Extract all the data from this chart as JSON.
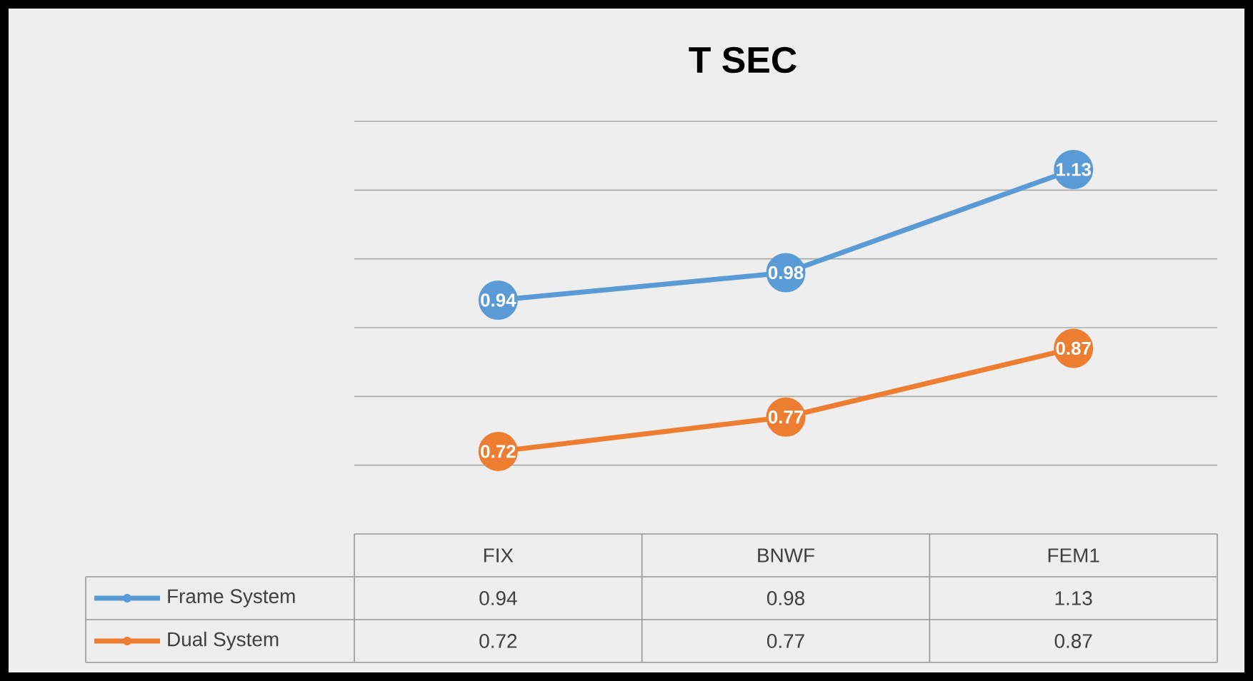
{
  "chart_data": {
    "type": "line",
    "title": "T SEC",
    "categories": [
      "FIX",
      "BNWF",
      "FEM1"
    ],
    "series": [
      {
        "name": "Frame System",
        "color": "#5b9bd5",
        "values": [
          0.94,
          0.98,
          1.13
        ],
        "value_labels": [
          "0.94",
          "0.98",
          "1.13"
        ]
      },
      {
        "name": "Dual System",
        "color": "#ed7d31",
        "values": [
          0.72,
          0.77,
          0.87
        ],
        "value_labels": [
          "0.72",
          "0.77",
          "0.87"
        ]
      }
    ],
    "ylim": [
      0.6,
      1.2
    ],
    "yticks": [
      {
        "value": 0.7,
        "label": null
      },
      {
        "value": 0.8,
        "label": null
      },
      {
        "value": 0.9,
        "label": null
      },
      {
        "value": 1.0,
        "label": null
      },
      {
        "value": 1.1,
        "label": null
      },
      {
        "value": 1.2,
        "label": null
      }
    ],
    "grid": "y",
    "legend": "bottom",
    "marker": "circle",
    "line_style": "solid"
  }
}
